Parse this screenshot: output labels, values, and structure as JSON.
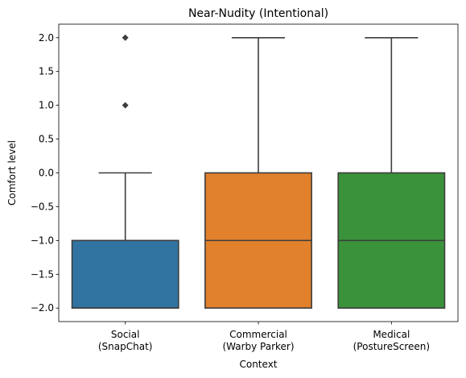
{
  "chart_data": {
    "type": "box",
    "title": "Near-Nudity (Intentional)",
    "xlabel": "Context",
    "ylabel": "Comfort level",
    "ylim": [
      -2.2,
      2.2
    ],
    "yticks": [
      "2.0",
      "1.5",
      "1.0",
      "0.5",
      "0.0",
      "−0.5",
      "−1.0",
      "−1.5",
      "−2.0"
    ],
    "ytick_values": [
      2.0,
      1.5,
      1.0,
      0.5,
      0.0,
      -0.5,
      -1.0,
      -1.5,
      -2.0
    ],
    "grid": false,
    "categories": [
      {
        "line1": "Social",
        "line2": "(SnapChat)"
      },
      {
        "line1": "Commercial",
        "line2": "(Warby Parker)"
      },
      {
        "line1": "Medical",
        "line2": "(PostureScreen)"
      }
    ],
    "boxes": [
      {
        "min": -2.0,
        "q1": -2.0,
        "median": -2.0,
        "q3": -1.0,
        "max": 0.0,
        "outliers": [
          1.0,
          2.0
        ],
        "color": "#3274a1"
      },
      {
        "min": -2.0,
        "q1": -2.0,
        "median": -1.0,
        "q3": 0.0,
        "max": 2.0,
        "outliers": [],
        "color": "#e1812c"
      },
      {
        "min": -2.0,
        "q1": -2.0,
        "median": -1.0,
        "q3": 0.0,
        "max": 2.0,
        "outliers": [],
        "color": "#3a923a"
      }
    ],
    "line_color": "#3d3d3d"
  }
}
